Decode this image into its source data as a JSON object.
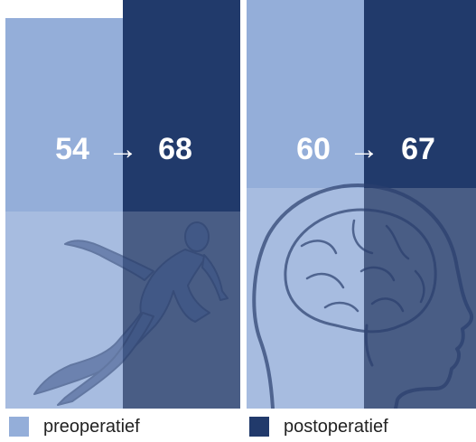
{
  "colors": {
    "preoperative": "#94aed9",
    "postoperative": "#213a6b"
  },
  "icons": [
    "running-man-icon",
    "head-brain-icon",
    "arrow-right-icon"
  ],
  "chart_data": [
    {
      "type": "bar",
      "categories": [
        "preoperatief",
        "postoperatief"
      ],
      "values": [
        54,
        68
      ],
      "ylim": [
        0,
        100
      ],
      "annotation": {
        "from": "54",
        "arrow": "→",
        "to": "68"
      }
    },
    {
      "type": "bar",
      "categories": [
        "preoperatief",
        "postoperatief"
      ],
      "values": [
        60,
        67
      ],
      "ylim": [
        0,
        100
      ],
      "annotation": {
        "from": "60",
        "arrow": "→",
        "to": "67"
      }
    }
  ],
  "legend": {
    "items": [
      {
        "label": "preoperatief",
        "color": "#94aed9"
      },
      {
        "label": "postoperatief",
        "color": "#213a6b"
      }
    ]
  }
}
